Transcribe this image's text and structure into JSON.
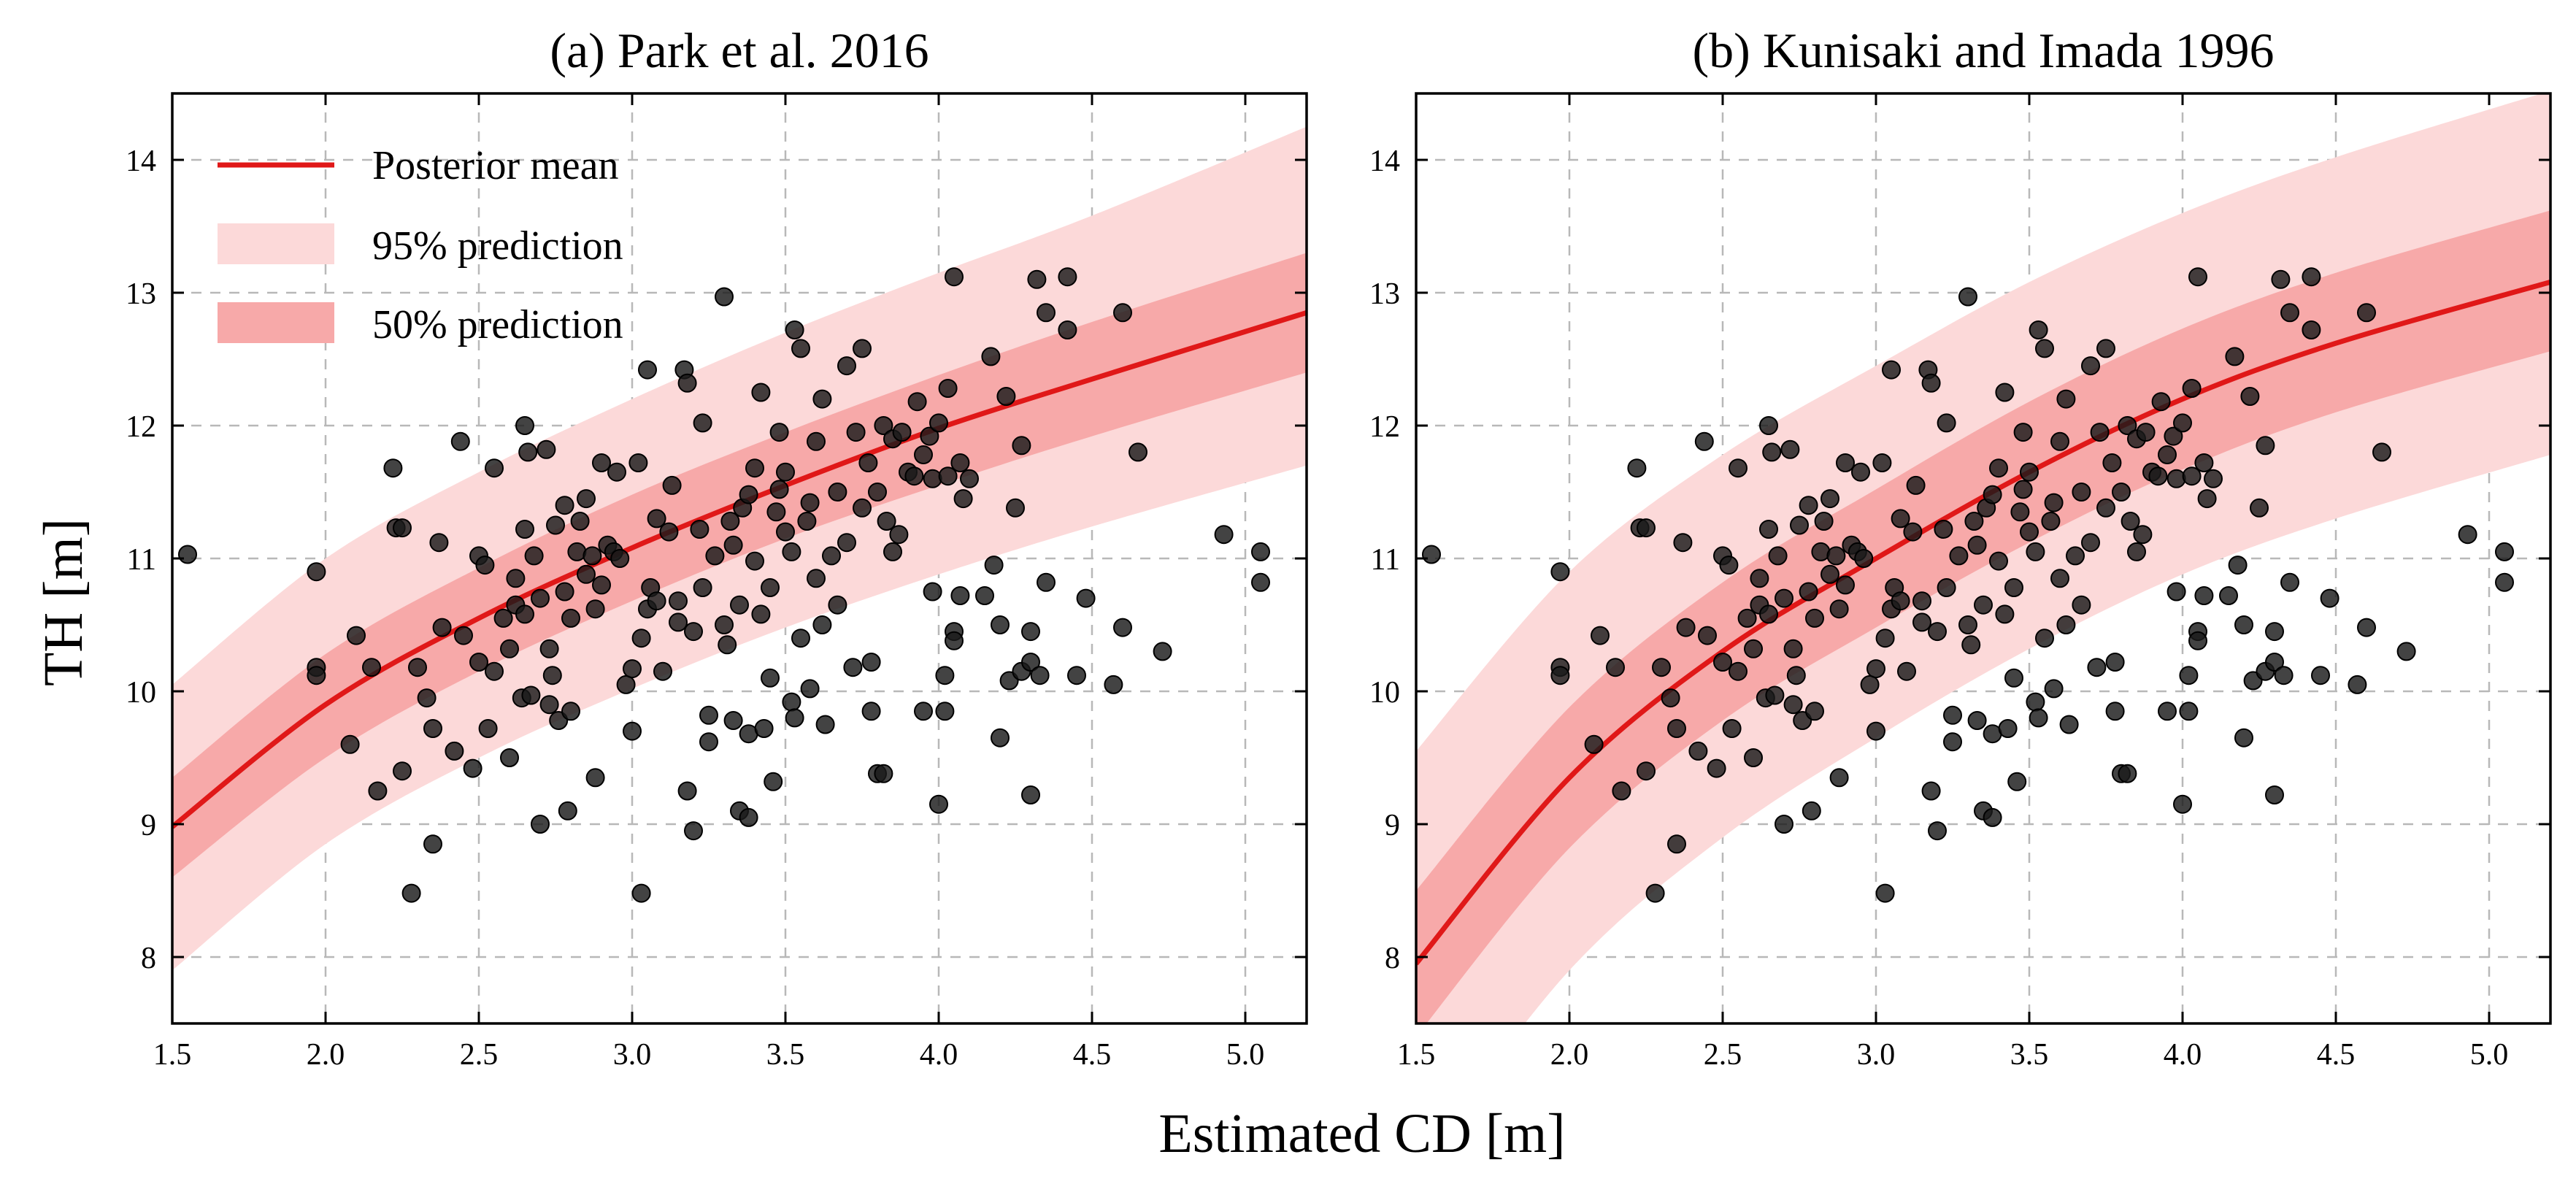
{
  "figure": {
    "shared_xlabel": "Estimated CD [m]",
    "shared_ylabel": "TH [m]",
    "legend": {
      "mean_label": "Posterior mean",
      "pi95_label": "95% prediction",
      "pi50_label": "50% prediction"
    },
    "colors": {
      "mean": "#e01818",
      "pi95": "#fcd9d9",
      "pi50": "#f7a9a9",
      "points": "#1a1a1a"
    }
  },
  "chart_data": [
    {
      "type": "scatter",
      "title": "(a) Park et al. 2016",
      "xlabel": "Estimated CD [m]",
      "ylabel": "TH [m]",
      "xlim": [
        1.5,
        5.2
      ],
      "ylim": [
        7.5,
        14.5
      ],
      "xticks": [
        "1.5",
        "2.0",
        "2.5",
        "3.0",
        "3.5",
        "4.0",
        "4.5",
        "5.0"
      ],
      "yticks": [
        "8",
        "9",
        "10",
        "11",
        "12",
        "13",
        "14"
      ],
      "grid": true,
      "legend_position": "top-left",
      "mean": {
        "x": [
          1.5,
          2.0,
          2.5,
          3.0,
          3.5,
          4.0,
          4.5,
          5.2
        ],
        "y": [
          8.98,
          9.9,
          10.55,
          11.08,
          11.55,
          11.98,
          12.35,
          12.85
        ]
      },
      "pi95": {
        "x": [
          1.5,
          2.0,
          2.5,
          3.0,
          3.5,
          4.0,
          4.5,
          5.2
        ],
        "lower": [
          7.9,
          8.85,
          9.5,
          10.02,
          10.48,
          10.88,
          11.24,
          11.7
        ],
        "upper": [
          10.05,
          11.0,
          11.65,
          12.2,
          12.7,
          13.15,
          13.58,
          14.25
        ]
      },
      "pi50": {
        "x": [
          1.5,
          2.0,
          2.5,
          3.0,
          3.5,
          4.0,
          4.5,
          5.2
        ],
        "lower": [
          8.6,
          9.5,
          10.15,
          10.68,
          11.15,
          11.55,
          11.92,
          12.4
        ],
        "upper": [
          9.35,
          10.28,
          10.93,
          11.48,
          11.95,
          12.38,
          12.78,
          13.3
        ]
      },
      "points": [
        [
          1.55,
          11.03
        ],
        [
          1.97,
          10.9
        ],
        [
          1.97,
          10.18
        ],
        [
          1.97,
          10.12
        ],
        [
          2.08,
          9.6
        ],
        [
          2.1,
          10.42
        ],
        [
          2.15,
          10.18
        ],
        [
          2.17,
          9.25
        ],
        [
          2.22,
          11.68
        ],
        [
          2.23,
          11.23
        ],
        [
          2.25,
          11.23
        ],
        [
          2.25,
          9.4
        ],
        [
          2.28,
          8.48
        ],
        [
          2.3,
          10.18
        ],
        [
          2.33,
          9.95
        ],
        [
          2.35,
          8.85
        ],
        [
          2.35,
          9.72
        ],
        [
          2.37,
          11.12
        ],
        [
          2.38,
          10.48
        ],
        [
          2.42,
          9.55
        ],
        [
          2.44,
          11.88
        ],
        [
          2.45,
          10.42
        ],
        [
          2.48,
          9.42
        ],
        [
          2.5,
          10.22
        ],
        [
          2.5,
          11.02
        ],
        [
          2.52,
          10.95
        ],
        [
          2.53,
          9.72
        ],
        [
          2.55,
          11.68
        ],
        [
          2.55,
          10.15
        ],
        [
          2.58,
          10.55
        ],
        [
          2.6,
          10.32
        ],
        [
          2.6,
          9.5
        ],
        [
          2.62,
          10.65
        ],
        [
          2.62,
          10.85
        ],
        [
          2.64,
          9.95
        ],
        [
          2.65,
          11.22
        ],
        [
          2.65,
          10.58
        ],
        [
          2.65,
          12.0
        ],
        [
          2.66,
          11.8
        ],
        [
          2.67,
          9.97
        ],
        [
          2.68,
          11.02
        ],
        [
          2.7,
          10.7
        ],
        [
          2.7,
          9.0
        ],
        [
          2.72,
          11.82
        ],
        [
          2.73,
          10.32
        ],
        [
          2.73,
          9.9
        ],
        [
          2.74,
          10.12
        ],
        [
          2.75,
          11.25
        ],
        [
          2.76,
          9.78
        ],
        [
          2.78,
          10.75
        ],
        [
          2.78,
          11.4
        ],
        [
          2.79,
          9.1
        ],
        [
          2.8,
          10.55
        ],
        [
          2.8,
          9.85
        ],
        [
          2.82,
          11.05
        ],
        [
          2.83,
          11.28
        ],
        [
          2.85,
          11.45
        ],
        [
          2.85,
          10.88
        ],
        [
          2.87,
          11.02
        ],
        [
          2.88,
          10.62
        ],
        [
          2.88,
          9.35
        ],
        [
          2.9,
          11.72
        ],
        [
          2.9,
          10.8
        ],
        [
          2.92,
          11.1
        ],
        [
          2.94,
          11.05
        ],
        [
          2.95,
          11.65
        ],
        [
          2.96,
          11.0
        ],
        [
          2.98,
          10.05
        ],
        [
          3.0,
          9.7
        ],
        [
          3.0,
          10.17
        ],
        [
          3.02,
          11.72
        ],
        [
          3.03,
          10.4
        ],
        [
          3.03,
          8.48
        ],
        [
          3.05,
          12.42
        ],
        [
          3.05,
          10.62
        ],
        [
          3.06,
          10.78
        ],
        [
          3.08,
          10.68
        ],
        [
          3.08,
          11.3
        ],
        [
          3.1,
          10.15
        ],
        [
          3.12,
          11.2
        ],
        [
          3.13,
          11.55
        ],
        [
          3.15,
          10.68
        ],
        [
          3.15,
          10.52
        ],
        [
          3.17,
          12.42
        ],
        [
          3.18,
          12.32
        ],
        [
          3.18,
          9.25
        ],
        [
          3.2,
          10.45
        ],
        [
          3.2,
          8.95
        ],
        [
          3.22,
          11.22
        ],
        [
          3.23,
          10.78
        ],
        [
          3.23,
          12.02
        ],
        [
          3.25,
          9.62
        ],
        [
          3.25,
          9.82
        ],
        [
          3.27,
          11.02
        ],
        [
          3.3,
          12.97
        ],
        [
          3.3,
          10.5
        ],
        [
          3.31,
          10.35
        ],
        [
          3.32,
          11.28
        ],
        [
          3.33,
          11.1
        ],
        [
          3.33,
          9.78
        ],
        [
          3.35,
          9.1
        ],
        [
          3.35,
          10.65
        ],
        [
          3.36,
          11.38
        ],
        [
          3.38,
          9.05
        ],
        [
          3.38,
          11.48
        ],
        [
          3.38,
          9.68
        ],
        [
          3.4,
          10.98
        ],
        [
          3.4,
          11.68
        ],
        [
          3.42,
          12.25
        ],
        [
          3.42,
          10.58
        ],
        [
          3.43,
          9.72
        ],
        [
          3.45,
          10.78
        ],
        [
          3.45,
          10.1
        ],
        [
          3.46,
          9.32
        ],
        [
          3.47,
          11.35
        ],
        [
          3.48,
          11.95
        ],
        [
          3.48,
          11.52
        ],
        [
          3.5,
          11.2
        ],
        [
          3.5,
          11.65
        ],
        [
          3.52,
          11.05
        ],
        [
          3.52,
          9.92
        ],
        [
          3.53,
          9.8
        ],
        [
          3.53,
          12.72
        ],
        [
          3.55,
          10.4
        ],
        [
          3.55,
          12.58
        ],
        [
          3.57,
          11.28
        ],
        [
          3.58,
          10.02
        ],
        [
          3.58,
          11.42
        ],
        [
          3.6,
          11.88
        ],
        [
          3.6,
          10.85
        ],
        [
          3.62,
          12.2
        ],
        [
          3.62,
          10.5
        ],
        [
          3.63,
          9.75
        ],
        [
          3.65,
          11.02
        ],
        [
          3.67,
          11.5
        ],
        [
          3.67,
          10.65
        ],
        [
          3.7,
          12.45
        ],
        [
          3.7,
          11.12
        ],
        [
          3.72,
          10.18
        ],
        [
          3.73,
          11.95
        ],
        [
          3.75,
          11.38
        ],
        [
          3.75,
          12.58
        ],
        [
          3.77,
          11.72
        ],
        [
          3.78,
          10.22
        ],
        [
          3.78,
          9.85
        ],
        [
          3.8,
          11.5
        ],
        [
          3.8,
          9.38
        ],
        [
          3.82,
          12.0
        ],
        [
          3.82,
          9.38
        ],
        [
          3.83,
          11.28
        ],
        [
          3.85,
          11.05
        ],
        [
          3.85,
          11.9
        ],
        [
          3.87,
          11.18
        ],
        [
          3.88,
          11.95
        ],
        [
          3.9,
          11.65
        ],
        [
          3.92,
          11.62
        ],
        [
          3.93,
          12.18
        ],
        [
          3.95,
          11.78
        ],
        [
          3.95,
          9.85
        ],
        [
          3.97,
          11.92
        ],
        [
          3.98,
          10.75
        ],
        [
          3.98,
          11.6
        ],
        [
          4.0,
          12.02
        ],
        [
          4.0,
          9.15
        ],
        [
          4.02,
          10.12
        ],
        [
          4.02,
          9.85
        ],
        [
          4.03,
          12.28
        ],
        [
          4.03,
          11.62
        ],
        [
          4.05,
          13.12
        ],
        [
          4.05,
          10.45
        ],
        [
          4.05,
          10.38
        ],
        [
          4.07,
          10.72
        ],
        [
          4.07,
          11.72
        ],
        [
          4.08,
          11.45
        ],
        [
          4.1,
          11.6
        ],
        [
          4.15,
          10.72
        ],
        [
          4.17,
          12.52
        ],
        [
          4.18,
          10.95
        ],
        [
          4.2,
          10.5
        ],
        [
          4.2,
          9.65
        ],
        [
          4.22,
          12.22
        ],
        [
          4.23,
          10.08
        ],
        [
          4.25,
          11.38
        ],
        [
          4.27,
          11.85
        ],
        [
          4.27,
          10.15
        ],
        [
          4.3,
          10.45
        ],
        [
          4.3,
          9.22
        ],
        [
          4.3,
          10.22
        ],
        [
          4.32,
          13.1
        ],
        [
          4.33,
          10.12
        ],
        [
          4.35,
          12.85
        ],
        [
          4.35,
          10.82
        ],
        [
          4.42,
          13.12
        ],
        [
          4.42,
          12.72
        ],
        [
          4.45,
          10.12
        ],
        [
          4.48,
          10.7
        ],
        [
          4.57,
          10.05
        ],
        [
          4.6,
          12.85
        ],
        [
          4.6,
          10.48
        ],
        [
          4.65,
          11.8
        ],
        [
          4.73,
          10.3
        ],
        [
          4.93,
          11.18
        ],
        [
          5.05,
          11.05
        ],
        [
          5.05,
          10.82
        ]
      ]
    },
    {
      "type": "scatter",
      "title": "(b) Kunisaki and Imada 1996",
      "xlabel": "Estimated CD [m]",
      "ylabel": "TH [m]",
      "xlim": [
        1.5,
        5.2
      ],
      "ylim": [
        7.5,
        14.5
      ],
      "xticks": [
        "1.5",
        "2.0",
        "2.5",
        "3.0",
        "3.5",
        "4.0",
        "4.5",
        "5.0"
      ],
      "yticks": [
        "8",
        "9",
        "10",
        "11",
        "12",
        "13",
        "14"
      ],
      "grid": true,
      "mean": {
        "x": [
          1.5,
          2.0,
          2.5,
          3.0,
          3.5,
          4.0,
          4.5,
          5.2
        ],
        "y": [
          7.95,
          9.35,
          10.3,
          11.0,
          11.65,
          12.2,
          12.62,
          13.08
        ]
      },
      "pi95": {
        "x": [
          1.5,
          2.0,
          2.5,
          3.0,
          3.5,
          4.0,
          4.5,
          5.2
        ],
        "lower": [
          6.4,
          7.9,
          8.9,
          9.65,
          10.32,
          10.88,
          11.3,
          11.78
        ],
        "upper": [
          9.55,
          10.9,
          11.78,
          12.45,
          13.08,
          13.6,
          14.02,
          14.52
        ]
      },
      "pi50": {
        "x": [
          1.5,
          2.0,
          2.5,
          3.0,
          3.5,
          4.0,
          4.5,
          5.2
        ],
        "lower": [
          7.4,
          8.82,
          9.78,
          10.48,
          11.12,
          11.67,
          12.1,
          12.56
        ],
        "upper": [
          8.5,
          9.88,
          10.82,
          11.52,
          12.18,
          12.73,
          13.15,
          13.62
        ]
      },
      "points_same_as": "(a)"
    }
  ]
}
